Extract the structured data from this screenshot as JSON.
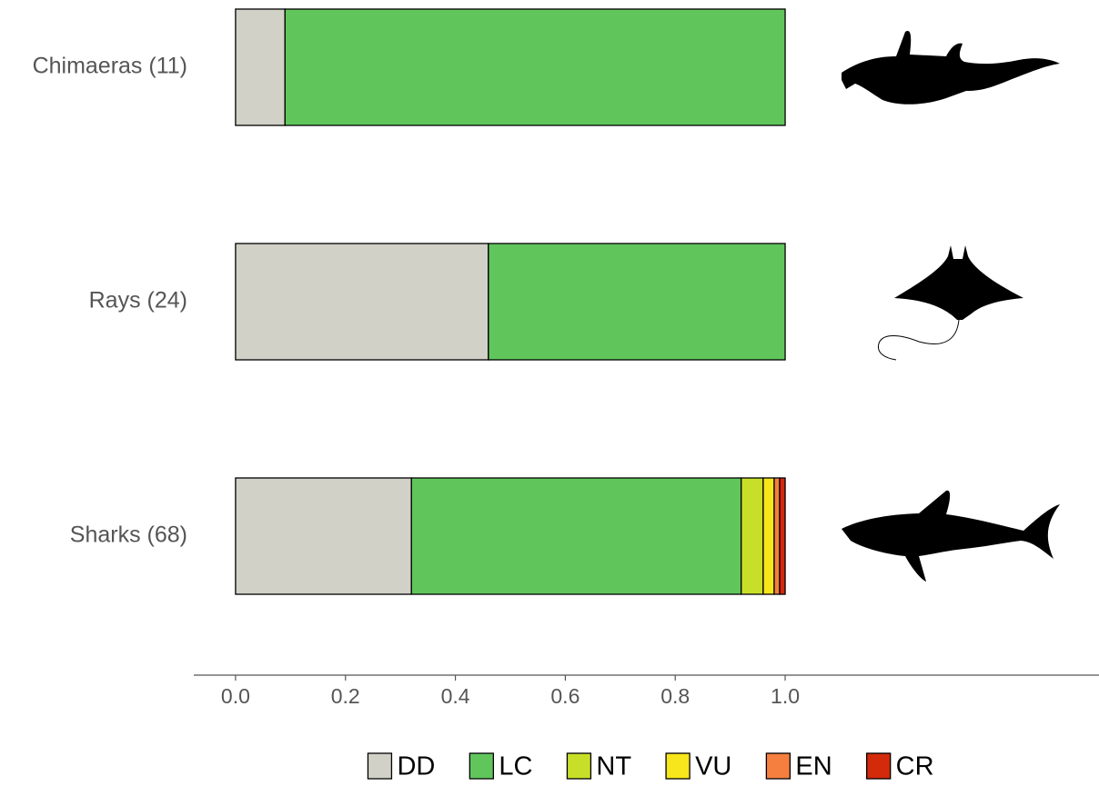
{
  "chart_data": {
    "type": "stacked-barh",
    "categories": [
      "Chimaeras (11)",
      "Rays (24)",
      "Sharks (68)"
    ],
    "series": [
      {
        "name": "DD",
        "color": "#d1d1c7",
        "values": [
          0.09,
          0.46,
          0.32
        ]
      },
      {
        "name": "LC",
        "color": "#60c65c",
        "values": [
          0.91,
          0.54,
          0.6
        ]
      },
      {
        "name": "NT",
        "color": "#c8df2a",
        "values": [
          0,
          0,
          0.04
        ]
      },
      {
        "name": "VU",
        "color": "#f7e61b",
        "values": [
          0,
          0,
          0.02
        ]
      },
      {
        "name": "EN",
        "color": "#f57f3f",
        "values": [
          0,
          0,
          0.01
        ]
      },
      {
        "name": "CR",
        "color": "#d42a0c",
        "values": [
          0,
          0,
          0.01
        ]
      }
    ],
    "xlim": [
      -0.076,
      1.571
    ],
    "xticks": [
      {
        "value": 0,
        "label": "0.0"
      },
      0.2,
      0.4,
      0.6,
      0.8,
      {
        "value": 1,
        "label": "1.0"
      }
    ],
    "legend": "bottom"
  }
}
